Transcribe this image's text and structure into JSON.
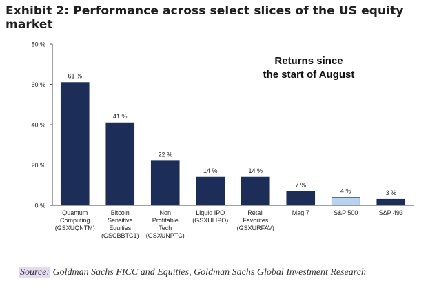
{
  "title": "Exhibit 2: Performance across select slices of the US equity market",
  "source": {
    "label": "Source:",
    "text": " Goldman Sachs FICC and Equities, Goldman Sachs Global Investment Research"
  },
  "chart_data": {
    "type": "bar",
    "annotation": [
      "Returns since",
      "the start of August"
    ],
    "categories": [
      [
        "Quantum",
        "Computing",
        "(GSXUQNTM)"
      ],
      [
        "Bitcoin",
        "Sensitive",
        "Equities",
        "(GSCBBTC1)"
      ],
      [
        "Non",
        "Profitable",
        "Tech",
        "(GSXUNPTC)"
      ],
      [
        "Liquid IPO",
        "(GSXULIPO)"
      ],
      [
        "Retail",
        "Favorites",
        "(GSXURFAV)"
      ],
      [
        "Mag 7"
      ],
      [
        "S&P 500"
      ],
      [
        "S&P 493"
      ]
    ],
    "values": [
      61,
      41,
      22,
      14,
      14,
      7,
      4,
      3
    ],
    "value_labels": [
      "61 %",
      "41 %",
      "22 %",
      "14 %",
      "14 %",
      "7 %",
      "4 %",
      "3 %"
    ],
    "bar_colors": [
      "#1c2d57",
      "#1c2d57",
      "#1c2d57",
      "#1c2d57",
      "#1c2d57",
      "#1c2d57",
      "#b7d3ee",
      "#1c2d57"
    ],
    "ylim": [
      0,
      80
    ],
    "yticks": [
      0,
      20,
      40,
      60,
      80
    ],
    "ytick_labels": [
      "0 %",
      "20 %",
      "40 %",
      "60 %",
      "80 %"
    ],
    "xlabel": "",
    "ylabel": ""
  }
}
